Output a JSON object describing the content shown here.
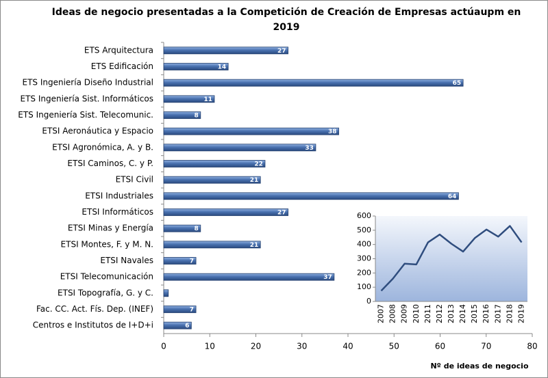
{
  "chart_data": [
    {
      "type": "hbar",
      "title": "Ideas de negocio presentadas a la Competición de Creación de Empresas actúaupm en 2019",
      "x_label": "Nº de ideas  de negocio",
      "categories": [
        "ETS Arquitectura",
        "ETS Edificación",
        "ETS Ingeniería Diseño Industrial",
        "ETS Ingeniería Sist. Informáticos",
        "ETS Ingeniería Sist. Telecomunic.",
        "ETSI Aeronáutica y Espacio",
        "ETSI Agronómica, A. y B.",
        "ETSI Caminos, C. y P.",
        "ETSI Civil",
        "ETSI Industriales",
        "ETSI Informáticos",
        "ETSI Minas y Energía",
        "ETSI Montes, F. y M. N.",
        "ETSI Navales",
        "ETSI Telecomunicación",
        "ETSI Topografía, G. y C.",
        "Fac. CC. Act. Fís. Dep. (INEF)",
        "Centros e Institutos de I+D+i"
      ],
      "values": [
        27,
        14,
        65,
        11,
        8,
        38,
        33,
        22,
        21,
        64,
        27,
        8,
        21,
        7,
        37,
        1,
        7,
        6
      ],
      "value_labels": [
        "27",
        "14",
        "65",
        "11",
        "8",
        "38",
        "33",
        "22",
        "21",
        "64",
        "27",
        "8",
        "21",
        "7",
        "37",
        null,
        "7",
        "6"
      ],
      "color": "#4a72b0",
      "xlim": [
        0,
        80
      ],
      "xticks": [
        0,
        10,
        20,
        30,
        40,
        50,
        60,
        70,
        80
      ]
    },
    {
      "type": "line",
      "categories": [
        "2007",
        "2008",
        "2009",
        "2010",
        "2011",
        "2012",
        "2013",
        "2014",
        "2015",
        "2016",
        "2017",
        "2018",
        "2019"
      ],
      "values": [
        75,
        160,
        265,
        260,
        415,
        470,
        405,
        350,
        445,
        505,
        455,
        530,
        415
      ],
      "color": "#2f4d7e",
      "ylim": [
        0,
        600
      ],
      "yticks": [
        0,
        100,
        200,
        300,
        400,
        500,
        600
      ]
    }
  ]
}
